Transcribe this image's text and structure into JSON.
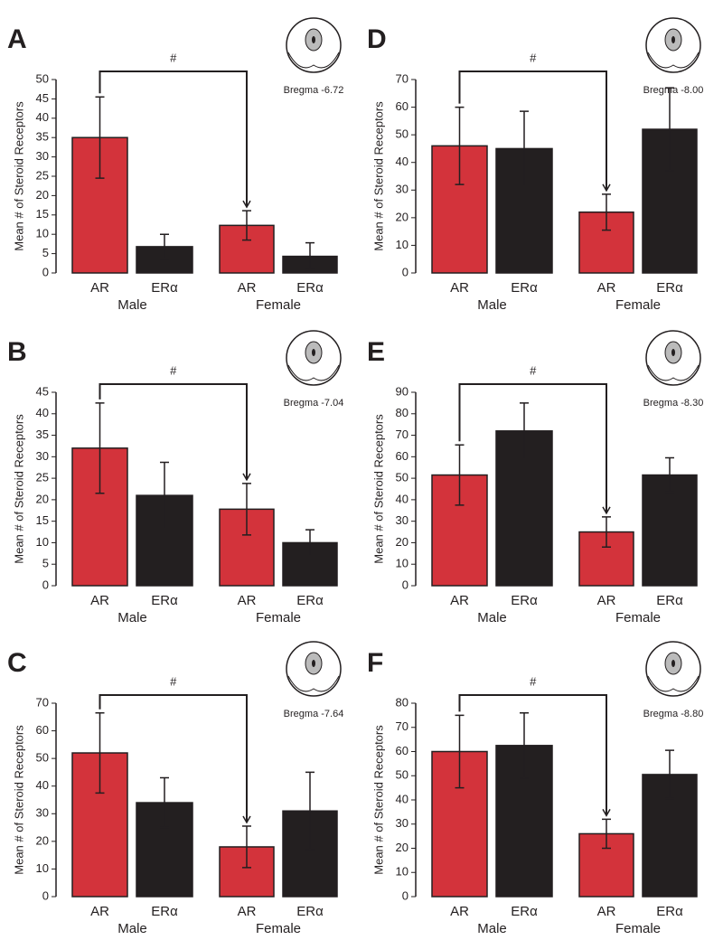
{
  "chart_data": [
    {
      "type": "bar",
      "panel": "A",
      "level": "Bregma -6.72",
      "ylabel": "Mean # of Steroid Receptors",
      "categories": [
        "AR",
        "ERα",
        "AR",
        "ERα"
      ],
      "groups": [
        "Male",
        "Female"
      ],
      "values": [
        35,
        6.8,
        12.3,
        4.3
      ],
      "errors": [
        10.5,
        3.2,
        3.8,
        3.5
      ],
      "colors": [
        "#d3333b",
        "#231f20",
        "#d3333b",
        "#231f20"
      ],
      "annotation": "#",
      "ylim": [
        0,
        50
      ],
      "yticks": [
        0,
        5,
        10,
        15,
        20,
        25,
        30,
        35,
        40,
        45,
        50
      ]
    },
    {
      "type": "bar",
      "panel": "B",
      "level": "Bregma -7.04",
      "ylabel": "Mean # of Steroid Receptors",
      "categories": [
        "AR",
        "ERα",
        "AR",
        "ERα"
      ],
      "groups": [
        "Male",
        "Female"
      ],
      "values": [
        32,
        21,
        17.8,
        10
      ],
      "errors": [
        10.5,
        7.7,
        6,
        3
      ],
      "colors": [
        "#d3333b",
        "#231f20",
        "#d3333b",
        "#231f20"
      ],
      "annotation": "#",
      "ylim": [
        0,
        45
      ],
      "yticks": [
        0,
        5,
        10,
        15,
        20,
        25,
        30,
        35,
        40,
        45
      ]
    },
    {
      "type": "bar",
      "panel": "C",
      "level": "Bregma -7.64",
      "ylabel": "Mean # of Steroid Receptors",
      "categories": [
        "AR",
        "ERα",
        "AR",
        "ERα"
      ],
      "groups": [
        "Male",
        "Female"
      ],
      "values": [
        52,
        34,
        18,
        31
      ],
      "errors": [
        14.5,
        9,
        7.5,
        14
      ],
      "colors": [
        "#d3333b",
        "#231f20",
        "#d3333b",
        "#231f20"
      ],
      "annotation": "#",
      "ylim": [
        0,
        70
      ],
      "yticks": [
        0,
        10,
        20,
        30,
        40,
        50,
        60,
        70
      ]
    },
    {
      "type": "bar",
      "panel": "D",
      "level": "Bregma -8.00",
      "ylabel": "Mean # of Steroid Receptors",
      "categories": [
        "AR",
        "ERα",
        "AR",
        "ERα"
      ],
      "groups": [
        "Male",
        "Female"
      ],
      "values": [
        46,
        45,
        22,
        52
      ],
      "errors": [
        14,
        13.5,
        6.5,
        15
      ],
      "colors": [
        "#d3333b",
        "#231f20",
        "#d3333b",
        "#231f20"
      ],
      "annotation": "#",
      "ylim": [
        0,
        70
      ],
      "yticks": [
        0,
        10,
        20,
        30,
        40,
        50,
        60,
        70
      ]
    },
    {
      "type": "bar",
      "panel": "E",
      "level": "Bregma -8.30",
      "ylabel": "Mean # of Steroid Receptors",
      "categories": [
        "AR",
        "ERα",
        "AR",
        "ERα"
      ],
      "groups": [
        "Male",
        "Female"
      ],
      "values": [
        51.5,
        72,
        25,
        51.5
      ],
      "errors": [
        14,
        13,
        7,
        8
      ],
      "colors": [
        "#d3333b",
        "#231f20",
        "#d3333b",
        "#231f20"
      ],
      "annotation": "#",
      "ylim": [
        0,
        90
      ],
      "yticks": [
        0,
        10,
        20,
        30,
        40,
        50,
        60,
        70,
        80,
        90
      ]
    },
    {
      "type": "bar",
      "panel": "F",
      "level": "Bregma -8.80",
      "ylabel": "Mean # of Steroid Receptors",
      "categories": [
        "AR",
        "ERα",
        "AR",
        "ERα"
      ],
      "groups": [
        "Male",
        "Female"
      ],
      "values": [
        60,
        62.5,
        26,
        50.5
      ],
      "errors": [
        15,
        13.5,
        6,
        10
      ],
      "colors": [
        "#d3333b",
        "#231f20",
        "#d3333b",
        "#231f20"
      ],
      "annotation": "#",
      "ylim": [
        0,
        80
      ],
      "yticks": [
        0,
        10,
        20,
        30,
        40,
        50,
        60,
        70,
        80
      ]
    }
  ]
}
